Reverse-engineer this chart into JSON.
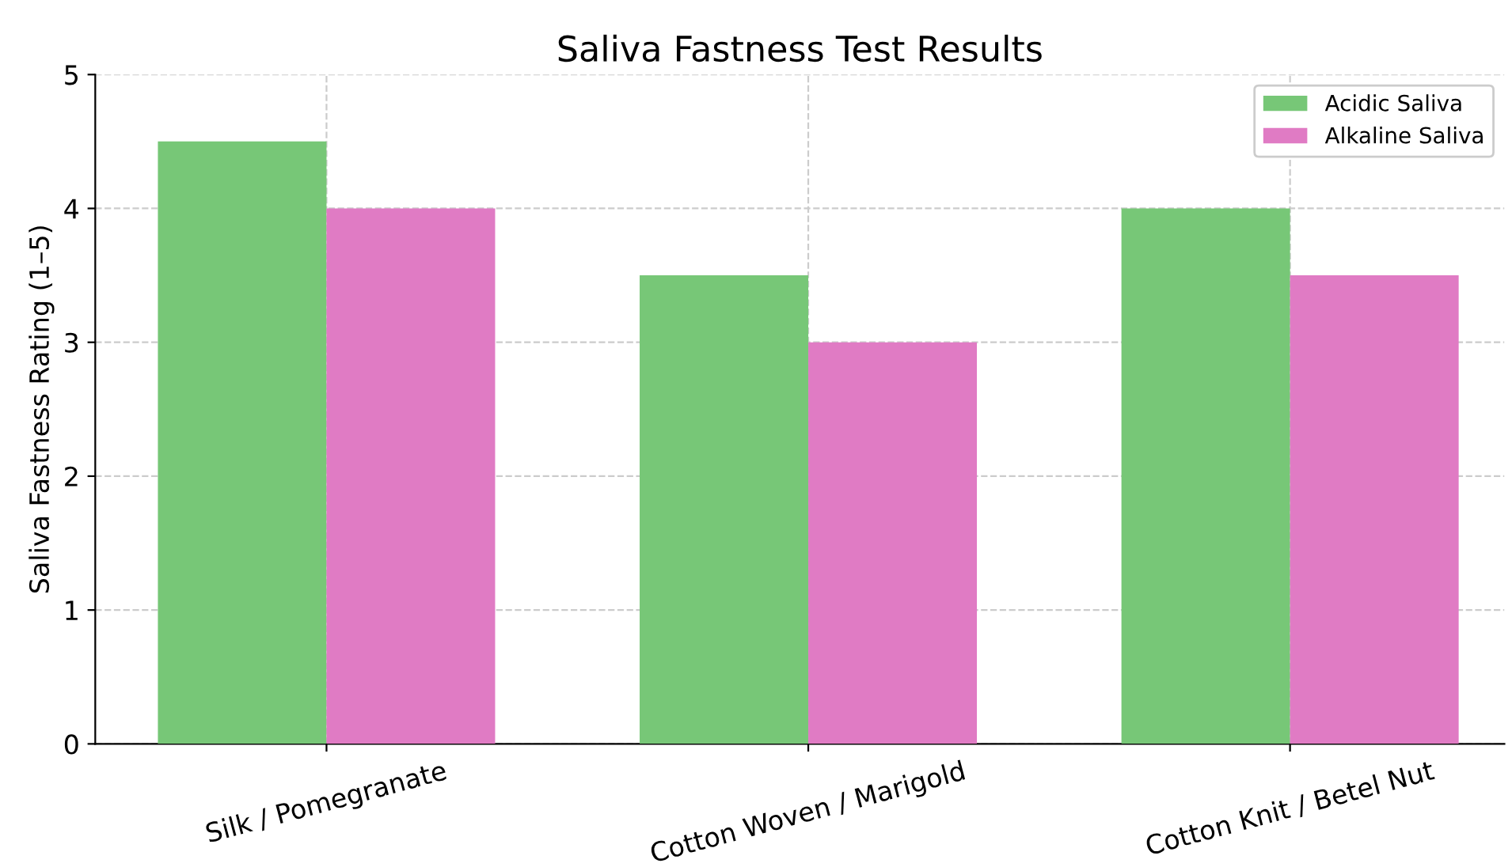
{
  "chart_data": {
    "type": "bar",
    "title": "Saliva Fastness Test Results",
    "ylabel": "Saliva Fastness Rating (1–5)",
    "categories": [
      "Silk / Pomegranate",
      "Cotton Woven / Marigold",
      "Cotton Knit / Betel Nut"
    ],
    "series": [
      {
        "name": "Acidic Saliva",
        "color": "#77c777",
        "values": [
          4.5,
          3.5,
          4
        ]
      },
      {
        "name": "Alkaline Saliva",
        "color": "#e07bc4",
        "values": [
          4,
          3,
          3.5
        ]
      }
    ],
    "ylim": [
      0,
      5
    ],
    "yticks": [
      0,
      1,
      2,
      3,
      4,
      5
    ],
    "grid": true,
    "legend": "top right"
  }
}
